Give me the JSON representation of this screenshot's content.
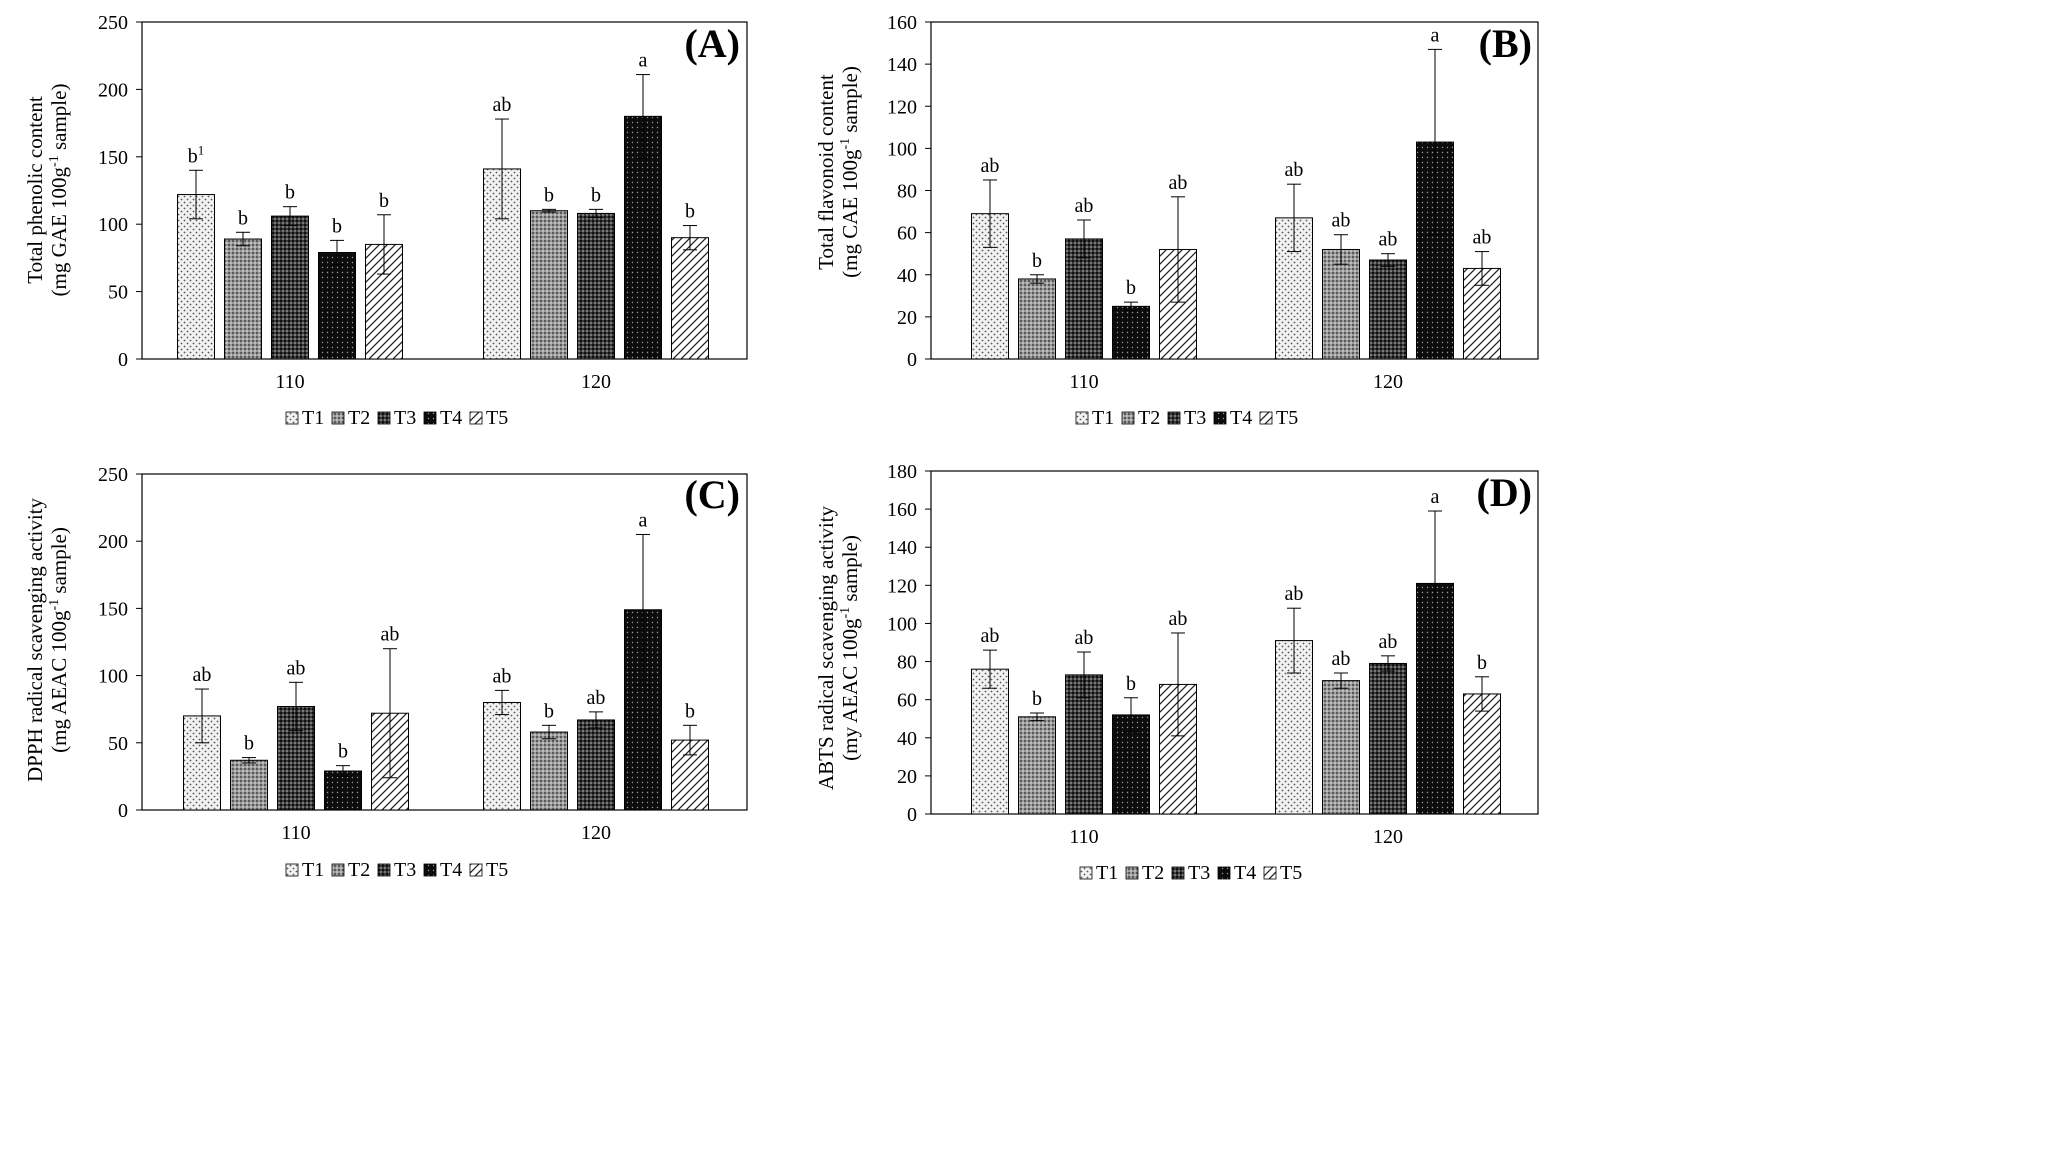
{
  "chart_data": [
    {
      "type": "bar",
      "panel": "(A)",
      "ylabel_line1": "Total phenolic content",
      "ylabel_line2_pre": "(mg GAE 100g",
      "ylabel_sup": "-1",
      "ylabel_line2_post": " sample)",
      "categories": [
        "110",
        "120"
      ],
      "ylim": [
        0,
        250
      ],
      "yticks": [
        "0",
        "50",
        "100",
        "150",
        "200",
        "250"
      ],
      "series": [
        {
          "name": "T1",
          "values": [
            122,
            141
          ],
          "errors": [
            18,
            37
          ],
          "letters": [
            "b",
            "ab"
          ]
        },
        {
          "name": "T2",
          "values": [
            89,
            110
          ],
          "errors": [
            5,
            1
          ],
          "letters": [
            "b",
            "b"
          ]
        },
        {
          "name": "T3",
          "values": [
            106,
            108
          ],
          "errors": [
            7,
            3
          ],
          "letters": [
            "b",
            "b"
          ]
        },
        {
          "name": "T4",
          "values": [
            79,
            180
          ],
          "errors": [
            9,
            31
          ],
          "letters": [
            "b",
            "a"
          ]
        },
        {
          "name": "T5",
          "values": [
            85,
            90
          ],
          "errors": [
            22,
            9
          ],
          "letters": [
            "b",
            "b"
          ]
        }
      ],
      "first_letter_superscript": "1"
    },
    {
      "type": "bar",
      "panel": "(B)",
      "ylabel_line1": "Total flavonoid content",
      "ylabel_line2_pre": "(mg CAE 100g",
      "ylabel_sup": "-1",
      "ylabel_line2_post": " sample)",
      "categories": [
        "110",
        "120"
      ],
      "ylim": [
        0,
        160
      ],
      "yticks": [
        "0",
        "20",
        "40",
        "60",
        "80",
        "100",
        "120",
        "140",
        "160"
      ],
      "series": [
        {
          "name": "T1",
          "values": [
            69,
            67
          ],
          "errors": [
            16,
            16
          ],
          "letters": [
            "ab",
            "ab"
          ]
        },
        {
          "name": "T2",
          "values": [
            38,
            52
          ],
          "errors": [
            2,
            7
          ],
          "letters": [
            "b",
            "ab"
          ]
        },
        {
          "name": "T3",
          "values": [
            57,
            47
          ],
          "errors": [
            9,
            3
          ],
          "letters": [
            "ab",
            "ab"
          ]
        },
        {
          "name": "T4",
          "values": [
            25,
            103
          ],
          "errors": [
            2,
            44
          ],
          "letters": [
            "b",
            "a"
          ]
        },
        {
          "name": "T5",
          "values": [
            52,
            43
          ],
          "errors": [
            25,
            8
          ],
          "letters": [
            "ab",
            "ab"
          ]
        }
      ]
    },
    {
      "type": "bar",
      "panel": "(C)",
      "ylabel_line1": "DPPH radical scavenging activity",
      "ylabel_line2_pre": "(mg AEAC 100g",
      "ylabel_sup": "-1",
      "ylabel_line2_post": " sample)",
      "categories": [
        "110",
        "120"
      ],
      "ylim": [
        0,
        250
      ],
      "yticks": [
        "0",
        "50",
        "100",
        "150",
        "200",
        "250"
      ],
      "series": [
        {
          "name": "T1",
          "values": [
            70,
            80
          ],
          "errors": [
            20,
            9
          ],
          "letters": [
            "ab",
            "ab"
          ]
        },
        {
          "name": "T2",
          "values": [
            37,
            58
          ],
          "errors": [
            2,
            5
          ],
          "letters": [
            "b",
            "b"
          ]
        },
        {
          "name": "T3",
          "values": [
            77,
            67
          ],
          "errors": [
            18,
            6
          ],
          "letters": [
            "ab",
            "ab"
          ]
        },
        {
          "name": "T4",
          "values": [
            29,
            149
          ],
          "errors": [
            4,
            56
          ],
          "letters": [
            "b",
            "a"
          ]
        },
        {
          "name": "T5",
          "values": [
            72,
            52
          ],
          "errors": [
            48,
            11
          ],
          "letters": [
            "ab",
            "b"
          ]
        }
      ]
    },
    {
      "type": "bar",
      "panel": "(D)",
      "ylabel_line1": "ABTS radical scavenging activity",
      "ylabel_line2_pre": "(my AEAC 100g",
      "ylabel_sup": "-1",
      "ylabel_line2_post": " sample)",
      "categories": [
        "110",
        "120"
      ],
      "ylim": [
        0,
        180
      ],
      "yticks": [
        "0",
        "20",
        "40",
        "60",
        "80",
        "100",
        "120",
        "140",
        "160",
        "180"
      ],
      "series": [
        {
          "name": "T1",
          "values": [
            76,
            91
          ],
          "errors": [
            10,
            17
          ],
          "letters": [
            "ab",
            "ab"
          ]
        },
        {
          "name": "T2",
          "values": [
            51,
            70
          ],
          "errors": [
            2,
            4
          ],
          "letters": [
            "b",
            "ab"
          ]
        },
        {
          "name": "T3",
          "values": [
            73,
            79
          ],
          "errors": [
            12,
            4
          ],
          "letters": [
            "ab",
            "ab"
          ]
        },
        {
          "name": "T4",
          "values": [
            52,
            121
          ],
          "errors": [
            9,
            38
          ],
          "letters": [
            "b",
            "a"
          ]
        },
        {
          "name": "T5",
          "values": [
            68,
            63
          ],
          "errors": [
            27,
            9
          ],
          "letters": [
            "ab",
            "b"
          ]
        }
      ]
    }
  ],
  "legend": [
    "T1",
    "T2",
    "T3",
    "T4",
    "T5"
  ]
}
